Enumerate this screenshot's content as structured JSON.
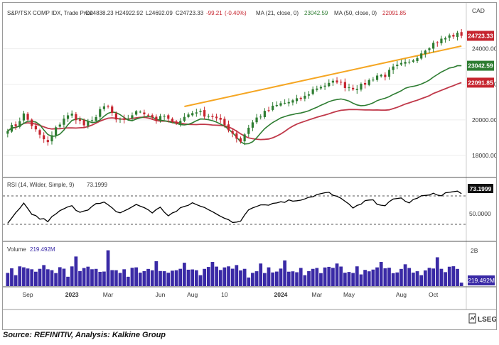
{
  "chart_data": {
    "type": "candlestick",
    "header": {
      "symbol": "S&P/TSX COMP IDX, Trade Price",
      "open": "O24838.23",
      "high": "H24922.92",
      "low": "L24692.09",
      "close": "C24723.33",
      "change": "-99.21",
      "change_pct": "(-0.40%)",
      "ma21_label": "MA (21, close, 0)",
      "ma21_value": "23042.59",
      "ma50_label": "MA (50, close, 0)",
      "ma50_value": "22091.85"
    },
    "currency": "CAD",
    "price_axis": {
      "min": 17000,
      "max": 25700,
      "ticks": [
        "24000.00",
        "22000.00",
        "20000.00",
        "18000.00"
      ],
      "tick_values": [
        24000,
        22000,
        20000,
        18000
      ]
    },
    "price_tags": [
      {
        "label": "24723.33",
        "value": 24723.33,
        "color": "#c6252f"
      },
      {
        "label": "23042.59",
        "value": 23042.59,
        "color": "#2e7d32"
      },
      {
        "label": "22091.85",
        "value": 22091.85,
        "color": "#c6252f"
      }
    ],
    "weeks": 114,
    "x_labels": [
      {
        "text": "Sep",
        "week": 5,
        "bold": false
      },
      {
        "text": "2023",
        "week": 16,
        "bold": true
      },
      {
        "text": "Mar",
        "week": 25,
        "bold": false
      },
      {
        "text": "Jun",
        "week": 38,
        "bold": false
      },
      {
        "text": "Aug",
        "week": 46,
        "bold": false
      },
      {
        "text": "10",
        "week": 54,
        "bold": false
      },
      {
        "text": "2024",
        "week": 68,
        "bold": true
      },
      {
        "text": "Mar",
        "week": 77,
        "bold": false
      },
      {
        "text": "May",
        "week": 85,
        "bold": false
      },
      {
        "text": "Aug",
        "week": 98,
        "bold": false
      },
      {
        "text": "Oct",
        "week": 106,
        "bold": false
      }
    ],
    "close_keypoints": [
      [
        0,
        19500
      ],
      [
        2,
        19700
      ],
      [
        4,
        20300
      ],
      [
        6,
        19700
      ],
      [
        8,
        19100
      ],
      [
        10,
        18700
      ],
      [
        12,
        19500
      ],
      [
        14,
        20100
      ],
      [
        16,
        20300
      ],
      [
        19,
        19700
      ],
      [
        21,
        19900
      ],
      [
        23,
        20600
      ],
      [
        25,
        20700
      ],
      [
        27,
        20000
      ],
      [
        29,
        19900
      ],
      [
        31,
        20300
      ],
      [
        33,
        20500
      ],
      [
        35,
        20300
      ],
      [
        37,
        20000
      ],
      [
        39,
        20200
      ],
      [
        41,
        19800
      ],
      [
        43,
        20000
      ],
      [
        45,
        20300
      ],
      [
        47,
        20500
      ],
      [
        49,
        20300
      ],
      [
        51,
        20200
      ],
      [
        53,
        19900
      ],
      [
        55,
        19500
      ],
      [
        57,
        19000
      ],
      [
        58,
        18800
      ],
      [
        60,
        19600
      ],
      [
        62,
        20100
      ],
      [
        64,
        20400
      ],
      [
        66,
        20700
      ],
      [
        68,
        20900
      ],
      [
        70,
        21000
      ],
      [
        72,
        21100
      ],
      [
        74,
        21300
      ],
      [
        76,
        21700
      ],
      [
        78,
        21900
      ],
      [
        80,
        22000
      ],
      [
        82,
        22200
      ],
      [
        84,
        21900
      ],
      [
        86,
        21800
      ],
      [
        88,
        21900
      ],
      [
        90,
        22200
      ],
      [
        92,
        22500
      ],
      [
        94,
        22500
      ],
      [
        96,
        22900
      ],
      [
        98,
        23100
      ],
      [
        100,
        23200
      ],
      [
        102,
        23600
      ],
      [
        104,
        24000
      ],
      [
        106,
        24300
      ],
      [
        108,
        24500
      ],
      [
        110,
        24700
      ],
      [
        112,
        24800
      ],
      [
        113,
        24723
      ]
    ],
    "trendline": {
      "from": [
        44,
        20750
      ],
      "to": [
        113,
        24150
      ],
      "color": "#f5a623"
    },
    "ma21_color": "#2e7d32",
    "ma50_color": "#c0394a",
    "up_color": "#2e7d32",
    "down_color": "#c6252f",
    "rsi": {
      "label": "RSI (14, Wilder, Simple, 9)",
      "value_label": "73.1999",
      "value": 73.2,
      "level_label": "50.0000",
      "upper": 70,
      "lower": 30,
      "keypoints": [
        [
          0,
          30
        ],
        [
          2,
          45
        ],
        [
          4,
          58
        ],
        [
          6,
          45
        ],
        [
          8,
          38
        ],
        [
          10,
          35
        ],
        [
          12,
          44
        ],
        [
          14,
          52
        ],
        [
          16,
          55
        ],
        [
          18,
          48
        ],
        [
          20,
          52
        ],
        [
          22,
          58
        ],
        [
          24,
          60
        ],
        [
          26,
          52
        ],
        [
          28,
          46
        ],
        [
          30,
          52
        ],
        [
          32,
          57
        ],
        [
          34,
          54
        ],
        [
          36,
          47
        ],
        [
          38,
          53
        ],
        [
          40,
          43
        ],
        [
          42,
          48
        ],
        [
          44,
          55
        ],
        [
          46,
          60
        ],
        [
          48,
          55
        ],
        [
          50,
          52
        ],
        [
          52,
          46
        ],
        [
          54,
          38
        ],
        [
          56,
          32
        ],
        [
          58,
          35
        ],
        [
          60,
          52
        ],
        [
          62,
          57
        ],
        [
          64,
          58
        ],
        [
          66,
          59
        ],
        [
          68,
          62
        ],
        [
          70,
          63
        ],
        [
          72,
          64
        ],
        [
          74,
          67
        ],
        [
          76,
          70
        ],
        [
          78,
          73
        ],
        [
          80,
          74
        ],
        [
          82,
          68
        ],
        [
          84,
          64
        ],
        [
          86,
          52
        ],
        [
          88,
          58
        ],
        [
          90,
          65
        ],
        [
          92,
          60
        ],
        [
          94,
          57
        ],
        [
          96,
          64
        ],
        [
          98,
          67
        ],
        [
          100,
          60
        ],
        [
          102,
          68
        ],
        [
          104,
          70
        ],
        [
          106,
          72
        ],
        [
          108,
          72
        ],
        [
          110,
          75
        ],
        [
          112,
          76
        ],
        [
          113,
          73.2
        ]
      ],
      "color": "#000000"
    },
    "volume": {
      "label": "Volume",
      "value_label": "219.492M",
      "top_tick": "2B",
      "color": "#3a2aa6",
      "spikes": [
        [
          9,
          1.35
        ],
        [
          17,
          1.9
        ],
        [
          25,
          2.3
        ],
        [
          37,
          1.6
        ],
        [
          44,
          1.5
        ],
        [
          51,
          1.55
        ],
        [
          57,
          1.35
        ],
        [
          63,
          1.45
        ],
        [
          69,
          1.65
        ],
        [
          82,
          1.45
        ],
        [
          93,
          1.55
        ],
        [
          99,
          1.4
        ],
        [
          107,
          1.85
        ],
        [
          113,
          0.22
        ]
      ],
      "dips": [
        [
          2,
          0.7
        ],
        [
          15,
          0.6
        ],
        [
          30,
          0.6
        ],
        [
          48,
          0.7
        ],
        [
          60,
          0.55
        ],
        [
          74,
          0.7
        ],
        [
          88,
          0.75
        ],
        [
          103,
          0.7
        ]
      ],
      "base": 1.05,
      "max": 2.6
    }
  },
  "source_text": "Source: REFINITIV, Analysis: Kalkine Group",
  "logo_text": "LSEG"
}
